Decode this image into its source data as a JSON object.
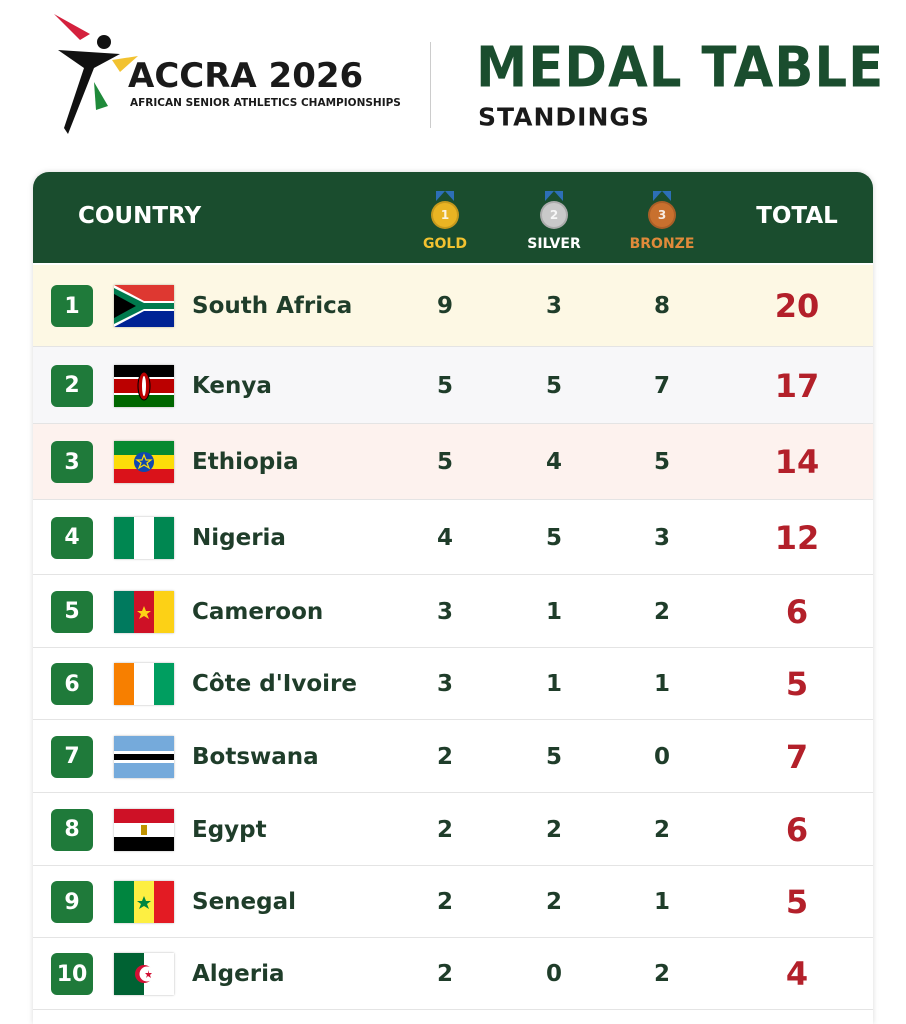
{
  "header": {
    "logo_title": "ACCRA 2026",
    "logo_subtitle": "AFRICAN SENIOR ATHLETICS CHAMPIONSHIPS",
    "title": "MEDAL TABLE",
    "subtitle": "STANDINGS"
  },
  "table": {
    "columns": [
      {
        "label": "COUNTRY"
      },
      {
        "label": "GOLD",
        "medal": "1"
      },
      {
        "label": "SILVER",
        "medal": "2"
      },
      {
        "label": "BRONZE",
        "medal": "3"
      },
      {
        "label": "TOTAL"
      }
    ],
    "rows": [
      [
        1,
        "South Africa",
        9,
        3,
        8,
        20
      ],
      [
        2,
        "Kenya",
        5,
        5,
        7,
        17
      ],
      [
        3,
        "Ethiopia",
        5,
        4,
        5,
        14
      ],
      [
        4,
        "Nigeria",
        4,
        5,
        3,
        12
      ],
      [
        5,
        "Cameroon",
        3,
        1,
        2,
        6
      ],
      [
        6,
        "Côte d'Ivoire",
        3,
        1,
        1,
        5
      ],
      [
        7,
        "Botswana",
        2,
        5,
        0,
        7
      ],
      [
        8,
        "Egypt",
        2,
        2,
        2,
        6
      ],
      [
        9,
        "Senegal",
        2,
        2,
        1,
        5
      ],
      [
        10,
        "Algeria",
        2,
        0,
        2,
        4
      ]
    ]
  }
}
